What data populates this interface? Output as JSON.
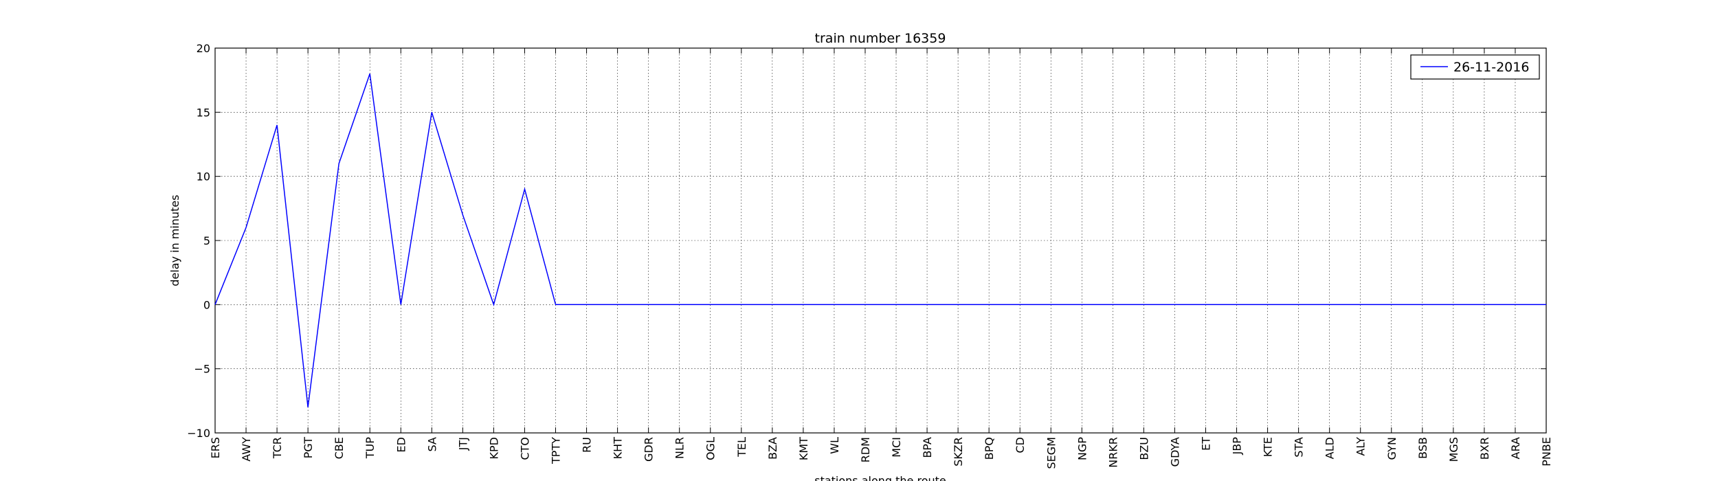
{
  "chart_data": {
    "type": "line",
    "title": "train number 16359",
    "xlabel": "stations along the route",
    "ylabel": "delay in minutes",
    "ylim": [
      -10,
      20
    ],
    "yticks": [
      "−10",
      "−5",
      "0",
      "5",
      "10",
      "15",
      "20"
    ],
    "grid": true,
    "legend_position": "top-right",
    "categories": [
      "ERS",
      "AWY",
      "TCR",
      "PGT",
      "CBE",
      "TUP",
      "ED",
      "SA",
      "JTJ",
      "KPD",
      "CTO",
      "TPTY",
      "RU",
      "KHT",
      "GDR",
      "NLR",
      "OGL",
      "TEL",
      "BZA",
      "KMT",
      "WL",
      "RDM",
      "MCI",
      "BPA",
      "SKZR",
      "BPQ",
      "CD",
      "SEGM",
      "NGP",
      "NRKR",
      "BZU",
      "GDYA",
      "ET",
      "JBP",
      "KTE",
      "STA",
      "ALD",
      "ALY",
      "GYN",
      "BSB",
      "MGS",
      "BXR",
      "ARA",
      "PNBE"
    ],
    "series": [
      {
        "name": "26-11-2016",
        "color": "#0000ff",
        "values": [
          0,
          6,
          14,
          -8,
          11,
          18,
          0,
          15,
          7,
          0,
          9,
          0,
          0,
          0,
          0,
          0,
          0,
          0,
          0,
          0,
          0,
          0,
          0,
          0,
          0,
          0,
          0,
          0,
          0,
          0,
          0,
          0,
          0,
          0,
          0,
          0,
          0,
          0,
          0,
          0,
          0,
          0,
          0,
          0
        ]
      }
    ]
  }
}
